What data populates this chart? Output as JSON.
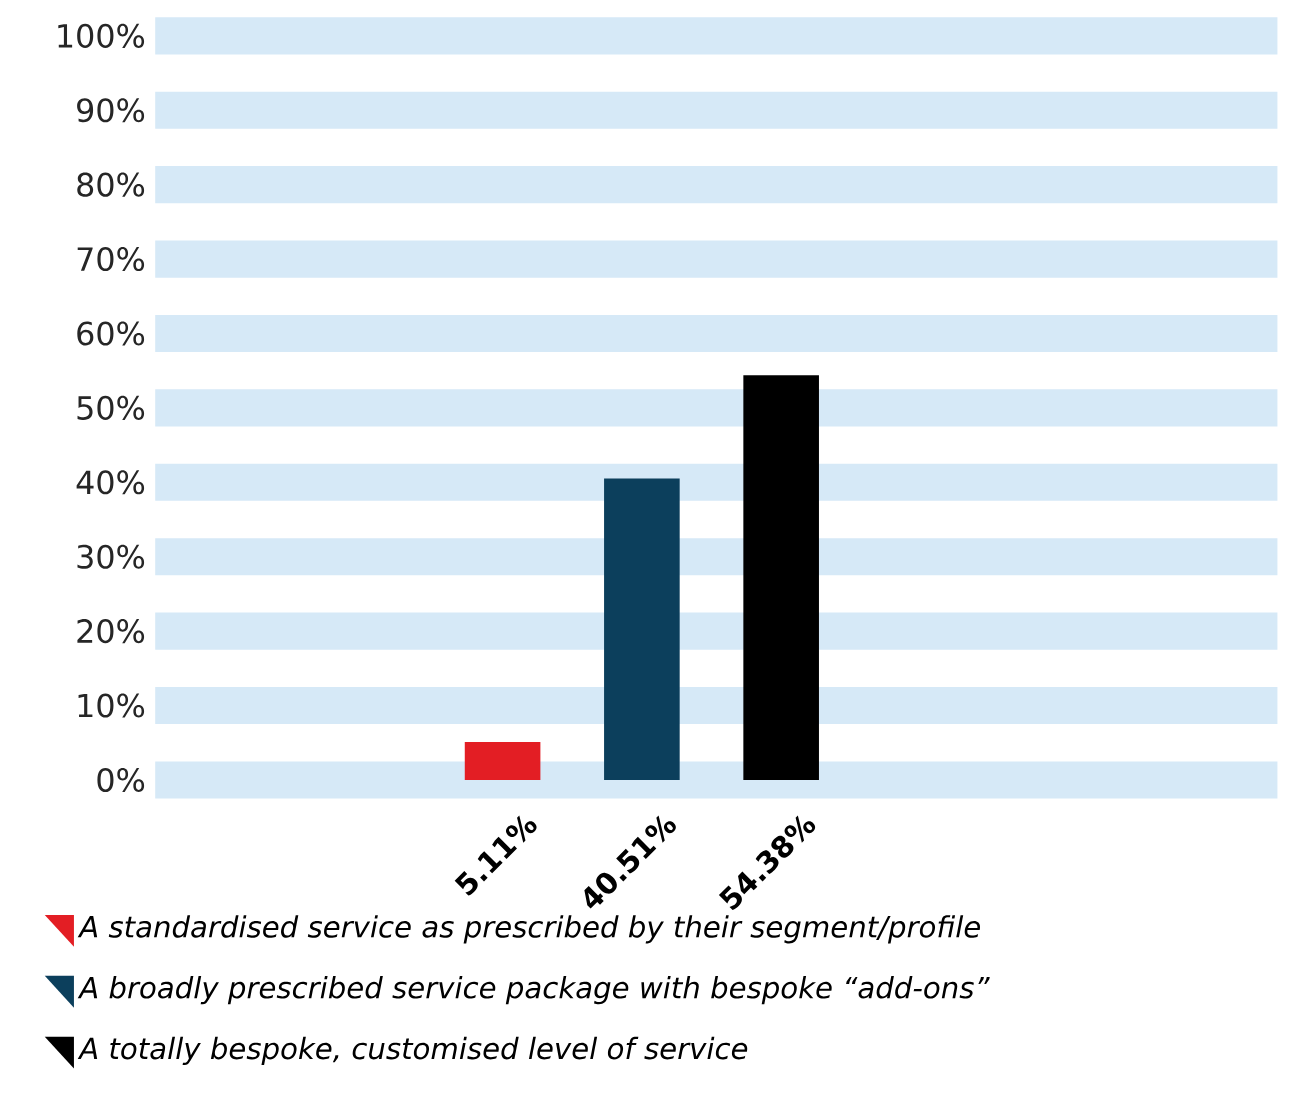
{
  "chart_data": {
    "type": "bar",
    "categories": [
      null
    ],
    "series": [
      {
        "name": "A standardised service as prescribed by their segment/profile",
        "color": "#e31e24",
        "values": [
          5.11
        ],
        "value_labels": [
          "5.11%"
        ]
      },
      {
        "name": "A broadly prescribed service package with bespoke “add-ons”",
        "color": "#0c3f5c",
        "values": [
          40.51
        ],
        "value_labels": [
          "40.51%"
        ]
      },
      {
        "name": "A totally bespoke, customised level of service",
        "color": "#000000",
        "values": [
          54.38
        ],
        "value_labels": [
          "54.38%"
        ]
      }
    ],
    "ylim": [
      0,
      100
    ],
    "yticks": [
      {
        "value": 0,
        "label": "0%"
      },
      {
        "value": 10,
        "label": "10%"
      },
      {
        "value": 20,
        "label": "20%"
      },
      {
        "value": 30,
        "label": "30%"
      },
      {
        "value": 40,
        "label": "40%"
      },
      {
        "value": 50,
        "label": "50%"
      },
      {
        "value": 60,
        "label": "60%"
      },
      {
        "value": 70,
        "label": "70%"
      },
      {
        "value": 80,
        "label": "80%"
      },
      {
        "value": 90,
        "label": "90%"
      },
      {
        "value": 100,
        "label": "100%"
      }
    ],
    "grid": "y",
    "legend": "bottom",
    "tick_labels": "y",
    "marker": "triangle"
  }
}
